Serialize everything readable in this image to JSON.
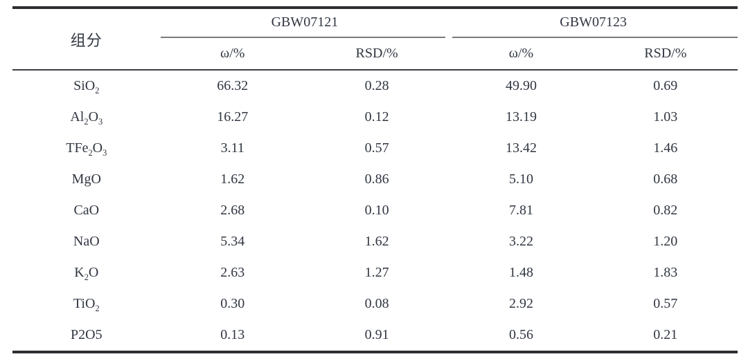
{
  "table": {
    "component_header": "组分",
    "groups": [
      {
        "label": "GBW07121",
        "subheaders": [
          "ω/%",
          "RSD/%"
        ]
      },
      {
        "label": "GBW07123",
        "subheaders": [
          "ω/%",
          "RSD/%"
        ]
      }
    ],
    "rows": [
      {
        "component": [
          "SiO",
          {
            "sub": "2"
          }
        ],
        "component_text": "SiO2",
        "values": [
          "66.32",
          "0.28",
          "49.90",
          "0.69"
        ]
      },
      {
        "component": [
          "Al",
          {
            "sub": "2"
          },
          "O",
          {
            "sub": "3"
          }
        ],
        "component_text": "Al2O3",
        "values": [
          "16.27",
          "0.12",
          "13.19",
          "1.03"
        ]
      },
      {
        "component": [
          "TFe",
          {
            "sub": "2"
          },
          "O",
          {
            "sub": "3"
          }
        ],
        "component_text": "TFe2O3",
        "values": [
          "3.11",
          "0.57",
          "13.42",
          "1.46"
        ]
      },
      {
        "component": [
          "MgO"
        ],
        "component_text": "MgO",
        "values": [
          "1.62",
          "0.86",
          "5.10",
          "0.68"
        ]
      },
      {
        "component": [
          "CaO"
        ],
        "component_text": "CaO",
        "values": [
          "2.68",
          "0.10",
          "7.81",
          "0.82"
        ]
      },
      {
        "component": [
          "NaO"
        ],
        "component_text": "NaO",
        "values": [
          "5.34",
          "1.62",
          "3.22",
          "1.20"
        ]
      },
      {
        "component": [
          "K",
          {
            "sub": "2"
          },
          "O"
        ],
        "component_text": "K2O",
        "values": [
          "2.63",
          "1.27",
          "1.48",
          "1.83"
        ]
      },
      {
        "component": [
          "TiO",
          {
            "sub": "2"
          }
        ],
        "component_text": "TiO2",
        "values": [
          "0.30",
          "0.08",
          "2.92",
          "0.57"
        ]
      },
      {
        "component": [
          "P2O5"
        ],
        "component_text": "P2O5",
        "values": [
          "0.13",
          "0.91",
          "0.56",
          "0.21"
        ]
      }
    ]
  },
  "colors": {
    "text": "#303641",
    "rule_heavy": "#2e2e32",
    "rule_medium": "#3b3d42",
    "rule_light": "#77797d",
    "background": "#ffffff"
  }
}
